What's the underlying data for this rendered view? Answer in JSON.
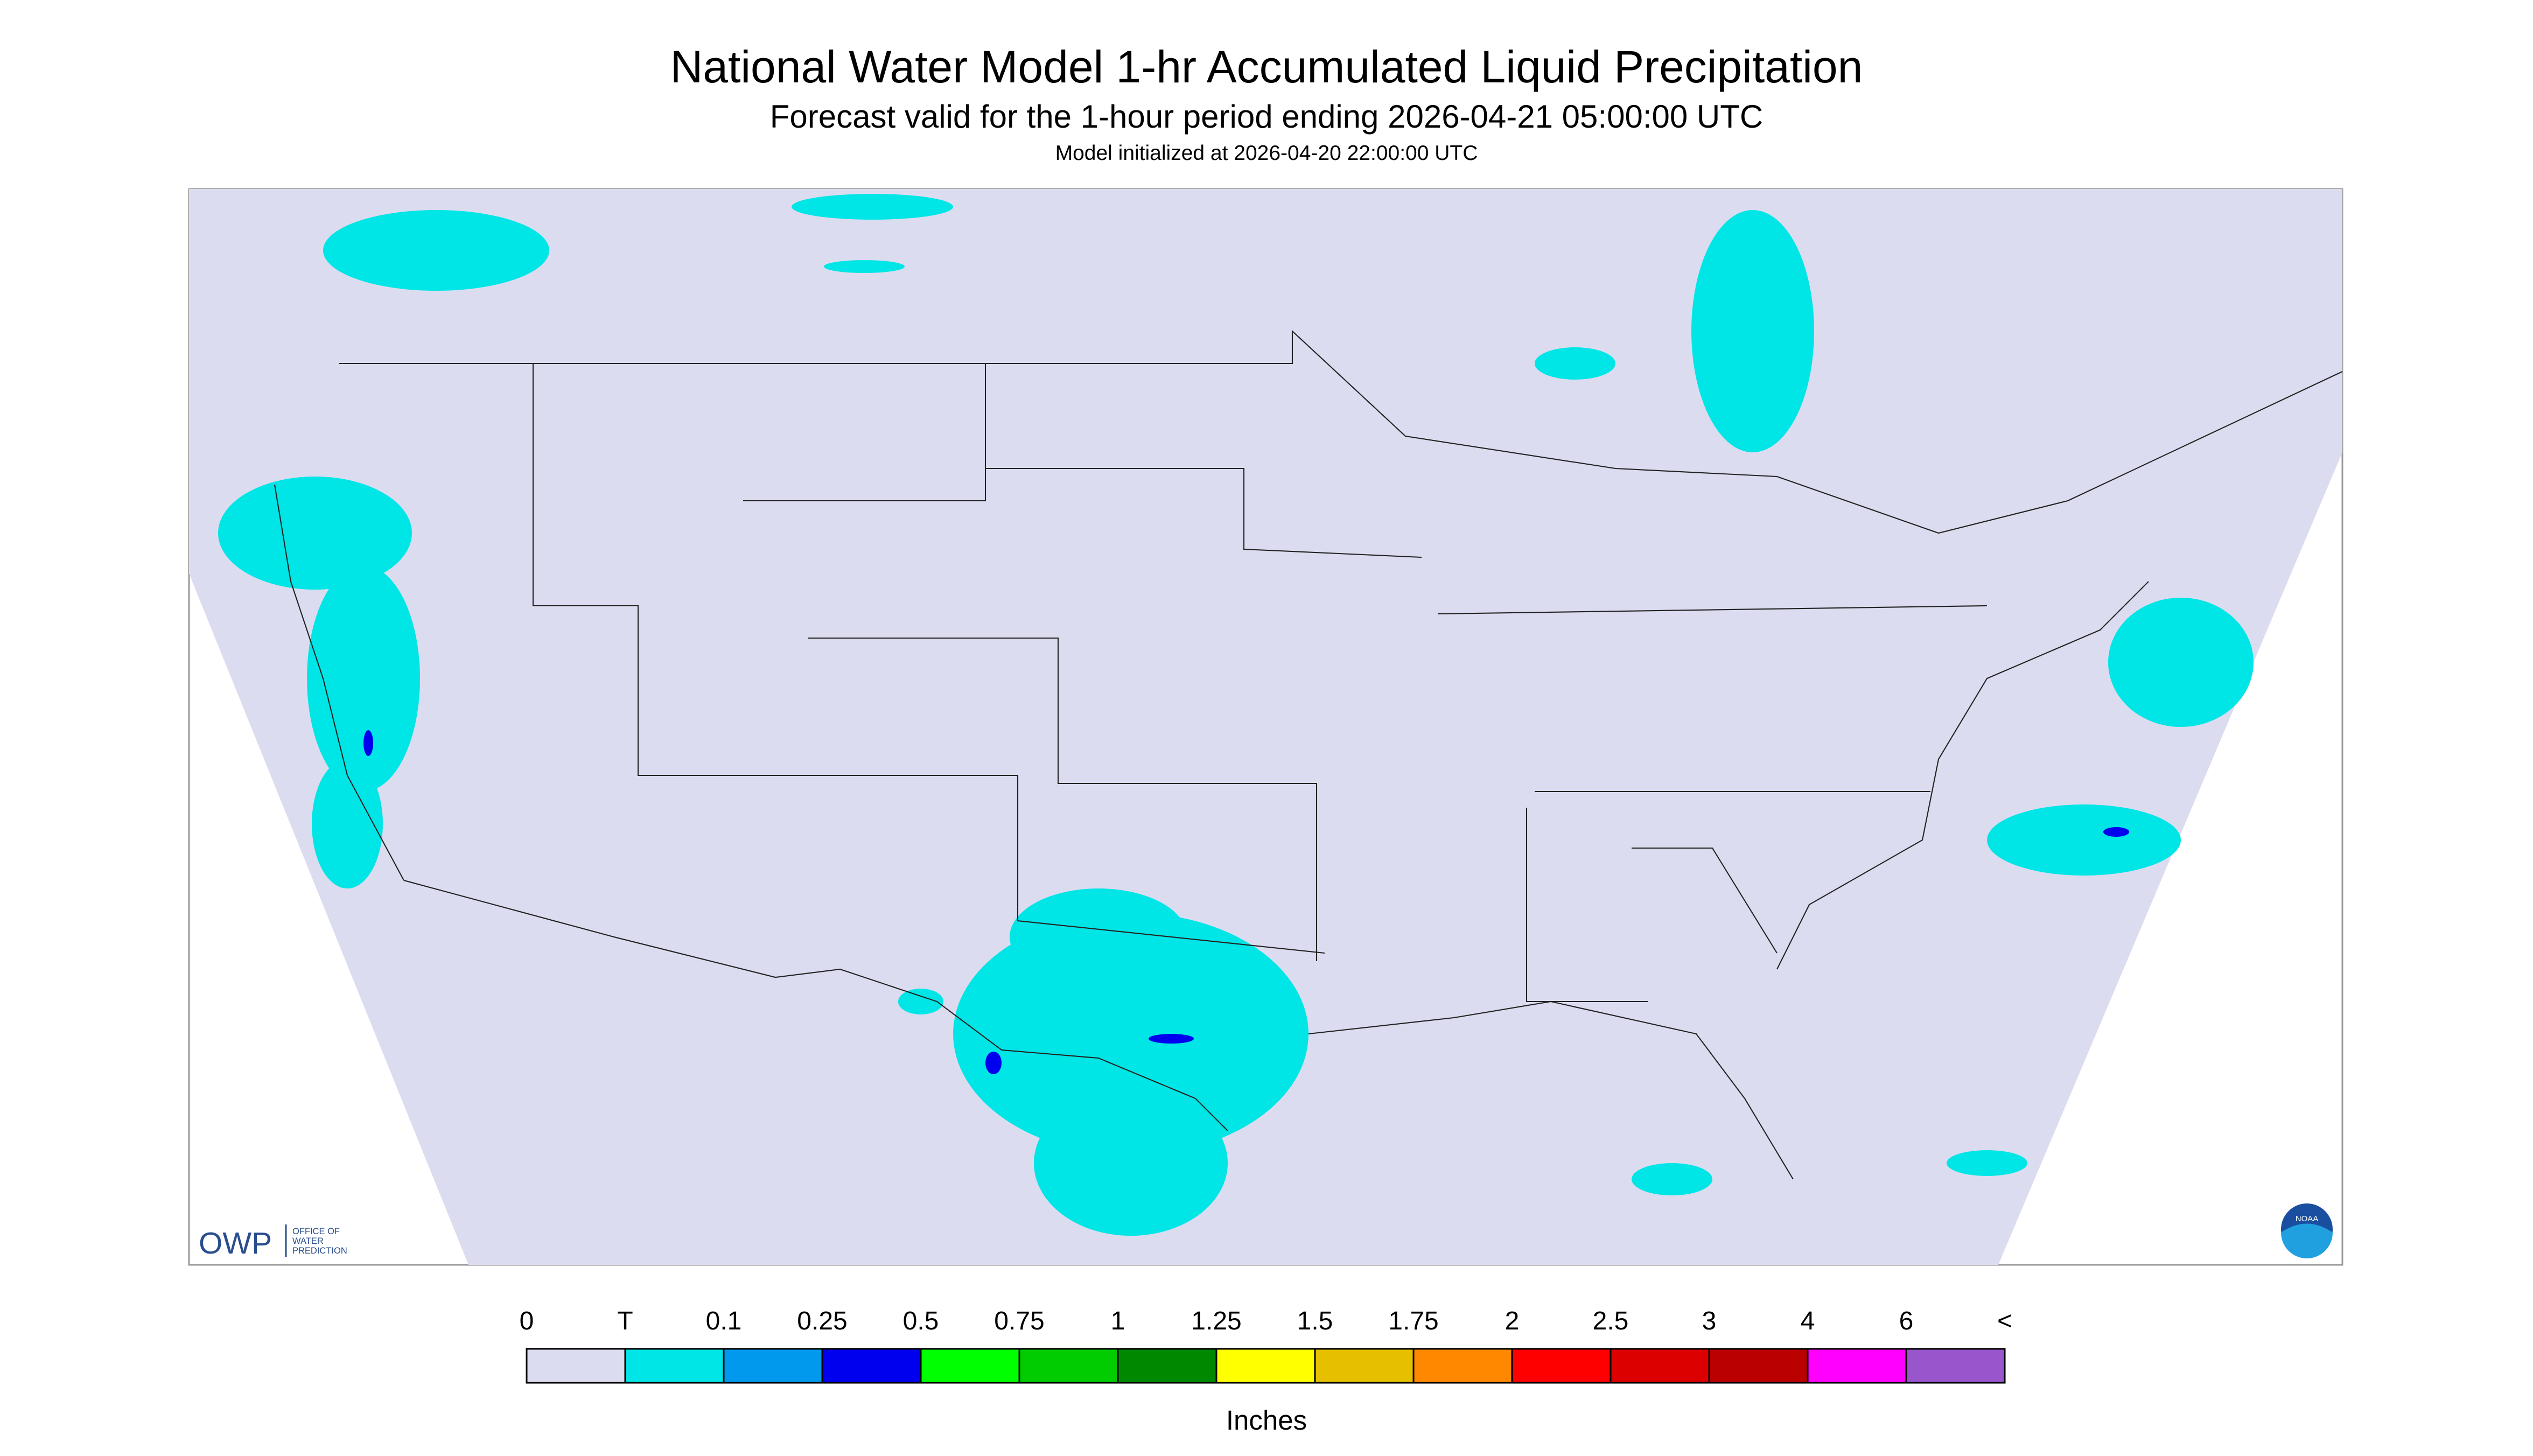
{
  "header": {
    "title": "National Water Model 1-hr Accumulated Liquid Precipitation",
    "subtitle": "Forecast valid for the 1-hour period ending 2026-04-21 05:00:00 UTC",
    "init": "Model initialized at 2026-04-20 22:00:00 UTC"
  },
  "logos": {
    "owp": "OWP",
    "owp_text": [
      "OFFICE OF",
      "WATER",
      "PREDICTION"
    ],
    "noaa": "NOAA"
  },
  "legend": {
    "labels": [
      "0",
      "T",
      "0.1",
      "0.25",
      "0.5",
      "0.75",
      "1",
      "1.25",
      "1.5",
      "1.75",
      "2",
      "2.5",
      "3",
      "4",
      "6",
      "<"
    ],
    "colors": [
      "#dcdcf0",
      "#00e5e5",
      "#0099ee",
      "#0000ee",
      "#00ff00",
      "#00cc00",
      "#008800",
      "#ffff00",
      "#e6c000",
      "#ff8800",
      "#ff0000",
      "#dd0000",
      "#bb0000",
      "#ff00ff",
      "#9955cc"
    ],
    "unit": "Inches"
  }
}
